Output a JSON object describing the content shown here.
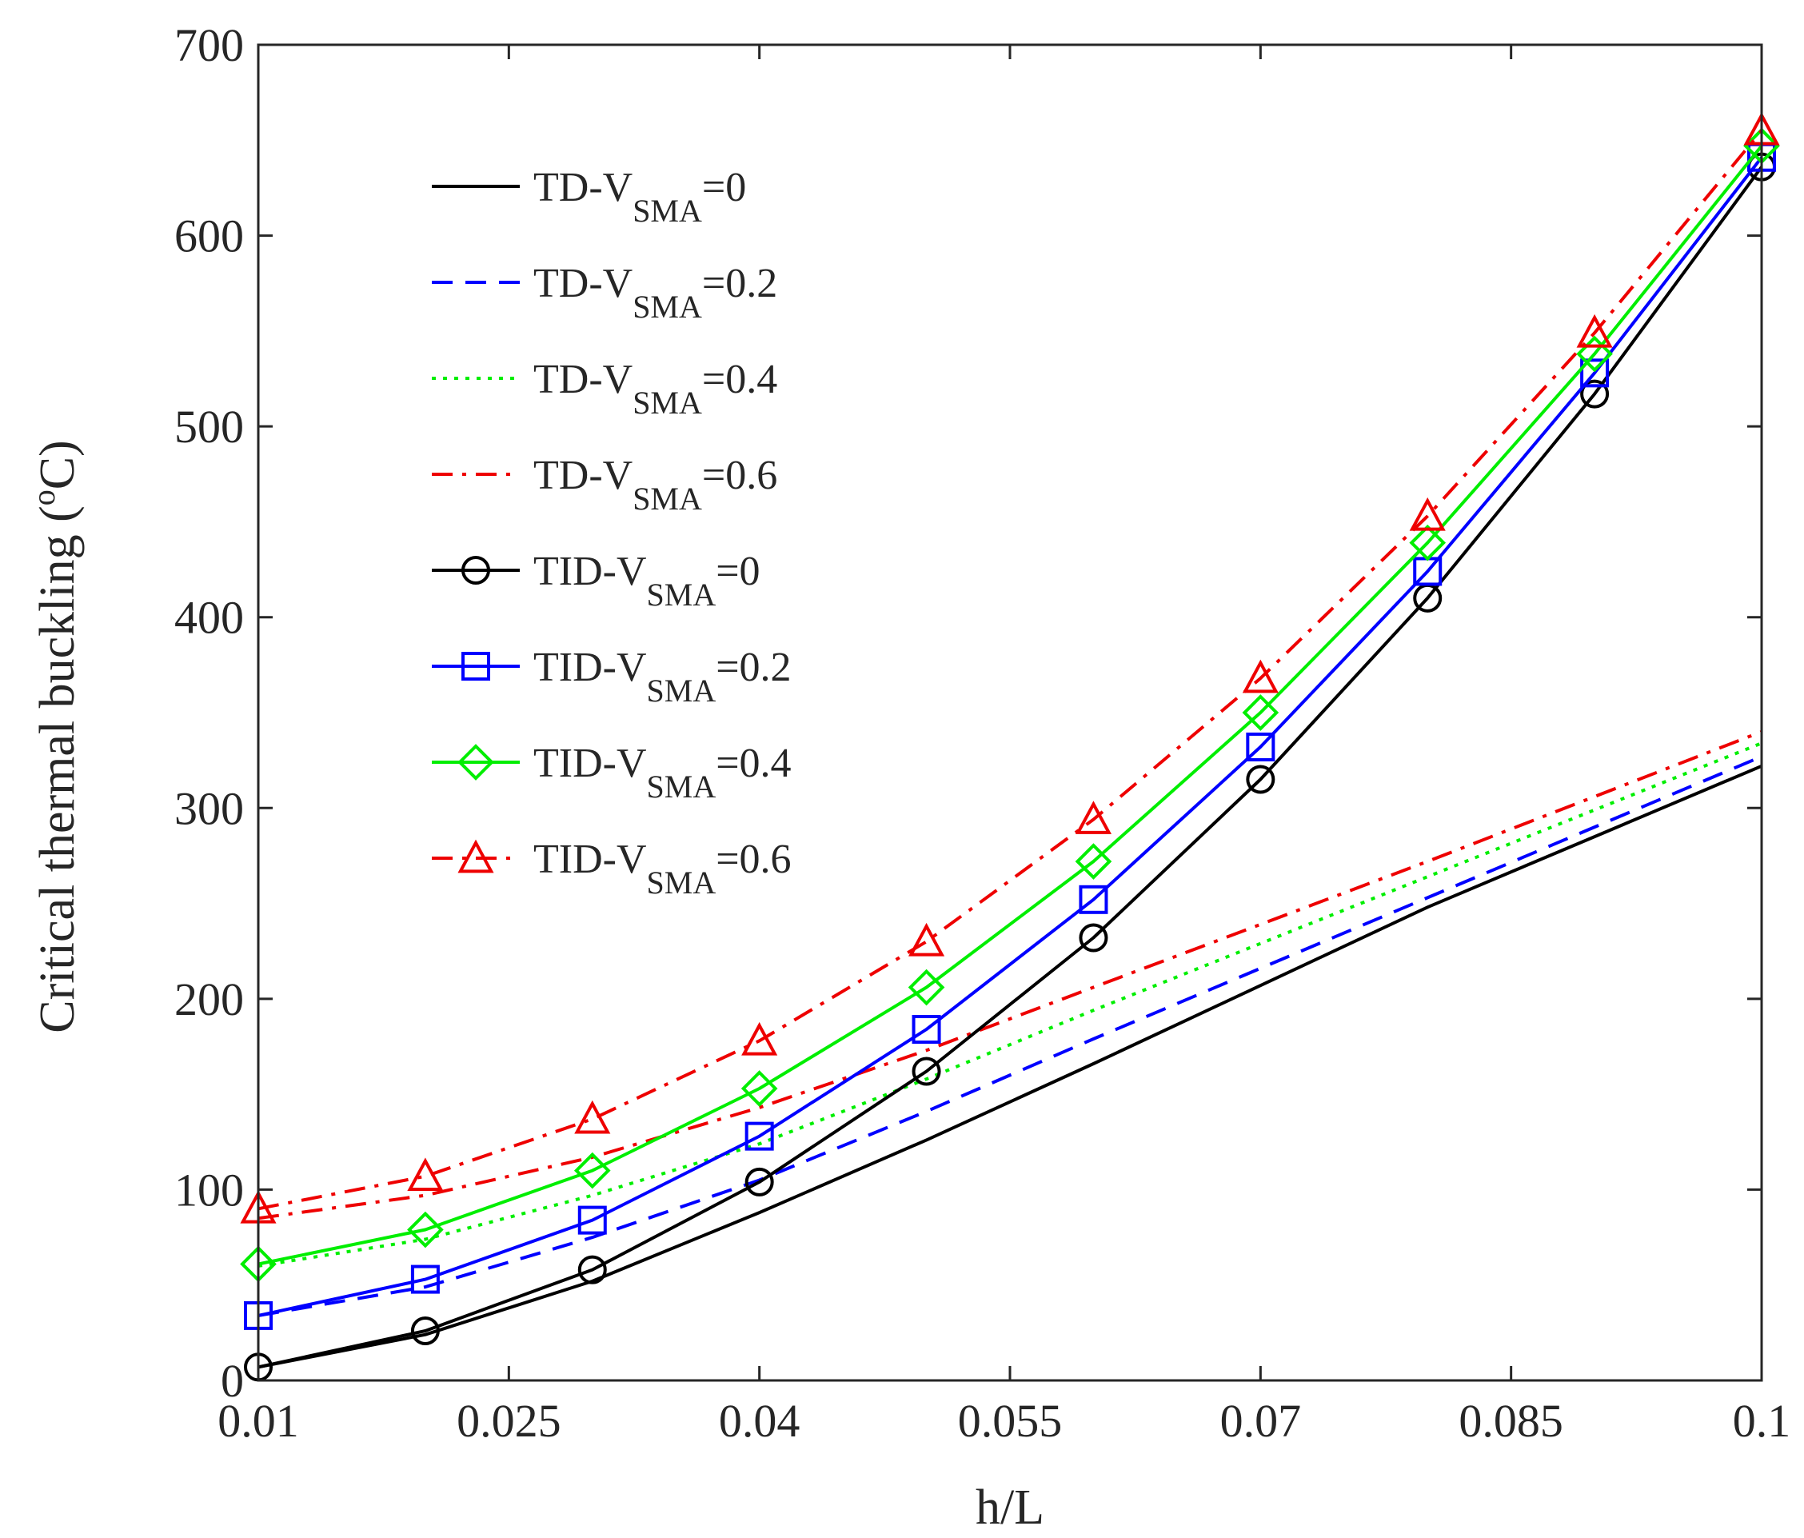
{
  "chart_data": {
    "type": "line",
    "title": "",
    "xlabel": "h/L",
    "ylabel_main": "Critical thermal buckling (",
    "ylabel_sup": "o",
    "ylabel_unit": "C)",
    "xlim": [
      0.01,
      0.1
    ],
    "ylim": [
      0,
      700
    ],
    "xticks": [
      0.01,
      0.025,
      0.04,
      0.055,
      0.07,
      0.085,
      0.1
    ],
    "xtick_labels": [
      "0.01",
      "0.025",
      "0.04",
      "0.055",
      "0.07",
      "0.085",
      "0.1"
    ],
    "yticks": [
      0,
      100,
      200,
      300,
      400,
      500,
      600,
      700
    ],
    "ytick_labels": [
      "0",
      "100",
      "200",
      "300",
      "400",
      "500",
      "600",
      "700"
    ],
    "grid": false,
    "legend_position": "top-left",
    "x": [
      0.01,
      0.02,
      0.03,
      0.04,
      0.05,
      0.06,
      0.07,
      0.08,
      0.09,
      0.1
    ],
    "series": [
      {
        "name": "TD-V_SMA=0",
        "prefix": "TD-V",
        "sub": "SMA",
        "suffix": "=0",
        "color": "#000000",
        "dash": "solid",
        "marker": "none",
        "values": [
          7,
          24,
          52,
          88,
          126,
          166,
          207,
          248,
          285,
          322
        ]
      },
      {
        "name": "TD-V_SMA=0.2",
        "prefix": "TD-V",
        "sub": "SMA",
        "suffix": "=0.2",
        "color": "#0000ff",
        "dash": "dashed",
        "marker": "none",
        "values": [
          34,
          49,
          75,
          105,
          141,
          179,
          216,
          253,
          290,
          327
        ]
      },
      {
        "name": "TD-V_SMA=0.4",
        "prefix": "TD-V",
        "sub": "SMA",
        "suffix": "=0.4",
        "color": "#00ee00",
        "dash": "dotted",
        "marker": "none",
        "values": [
          60,
          74,
          97,
          124,
          158,
          194,
          229,
          264,
          299,
          334
        ]
      },
      {
        "name": "TD-V_SMA=0.6",
        "prefix": "TD-V",
        "sub": "SMA",
        "suffix": "=0.6",
        "color": "#ee0000",
        "dash": "dashdot",
        "marker": "none",
        "values": [
          85,
          97,
          117,
          143,
          173,
          206,
          239,
          272,
          306,
          340
        ]
      },
      {
        "name": "TID-V_SMA=0",
        "prefix": "TID-V",
        "sub": "SMA",
        "suffix": "=0",
        "color": "#000000",
        "dash": "solid",
        "marker": "circle",
        "values": [
          7,
          26,
          58,
          104,
          162,
          232,
          315,
          410,
          517,
          636
        ]
      },
      {
        "name": "TID-V_SMA=0.2",
        "prefix": "TID-V",
        "sub": "SMA",
        "suffix": "=0.2",
        "color": "#0000ff",
        "dash": "solid",
        "marker": "square",
        "values": [
          34,
          53,
          84,
          128,
          184,
          252,
          332,
          424,
          528,
          641
        ]
      },
      {
        "name": "TID-V_SMA=0.4",
        "prefix": "TID-V",
        "sub": "SMA",
        "suffix": "=0.4",
        "color": "#00ee00",
        "dash": "solid",
        "marker": "diamond",
        "values": [
          61,
          79,
          110,
          153,
          206,
          272,
          350,
          439,
          538,
          647
        ]
      },
      {
        "name": "TID-V_SMA=0.6",
        "prefix": "TID-V",
        "sub": "SMA",
        "suffix": "=0.6",
        "color": "#ee0000",
        "dash": "dashdot",
        "marker": "triangle",
        "values": [
          90,
          107,
          137,
          178,
          230,
          294,
          368,
          453,
          549,
          655
        ]
      }
    ]
  }
}
